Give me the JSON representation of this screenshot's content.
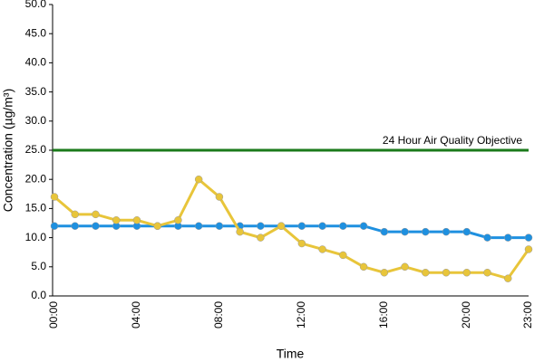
{
  "chart_data": {
    "type": "line",
    "y_label": "Concentration (µg/m³)",
    "x_label": "Time",
    "categories": [
      "00:00",
      null,
      null,
      null,
      "04:00",
      null,
      null,
      null,
      "08:00",
      null,
      null,
      null,
      "12:00",
      null,
      null,
      null,
      "16:00",
      null,
      null,
      null,
      "20:00",
      null,
      null,
      "23:00"
    ],
    "series": [
      {
        "color": "#1e90e0",
        "values": [
          12,
          12,
          12,
          12,
          12,
          12,
          12,
          12,
          12,
          12,
          12,
          12,
          12,
          12,
          12,
          12,
          11,
          11,
          11,
          11,
          11,
          10,
          10,
          10
        ]
      },
      {
        "color": "#e8c53a",
        "values": [
          17,
          14,
          14,
          13,
          13,
          12,
          13,
          20,
          17,
          11,
          10,
          12,
          9,
          8,
          7,
          5,
          4,
          5,
          4,
          4,
          4,
          4,
          3,
          8
        ]
      }
    ],
    "reference_line": {
      "value": 25,
      "label": "24 Hour Air Quality Objective",
      "color": "#1a7a1a"
    },
    "ylim": [
      0,
      50
    ],
    "yticks": [
      {
        "value": 0,
        "label": "0.0"
      },
      {
        "value": 5,
        "label": "5.0"
      },
      {
        "value": 10,
        "label": "10.0"
      },
      {
        "value": 15,
        "label": "15.0"
      },
      {
        "value": 20,
        "label": "20.0"
      },
      {
        "value": 25,
        "label": "25.0"
      },
      {
        "value": 30,
        "label": "30.0"
      },
      {
        "value": 35,
        "label": "35.0"
      },
      {
        "value": 40,
        "label": "40.0"
      },
      {
        "value": 45,
        "label": "45.0"
      },
      {
        "value": 50,
        "label": "50.0"
      }
    ]
  }
}
